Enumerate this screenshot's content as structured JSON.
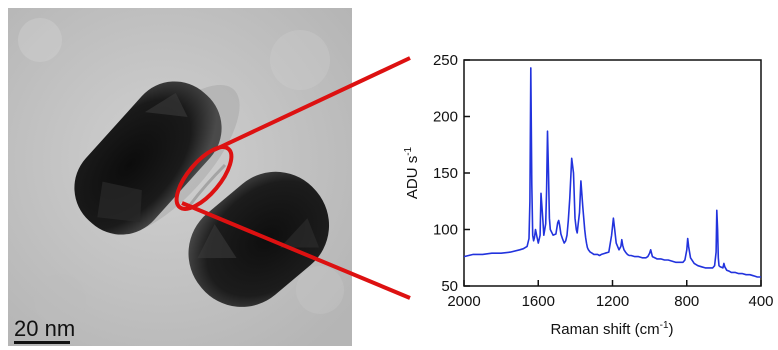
{
  "micrograph": {
    "scale_bar_label": "20 nm"
  },
  "colors": {
    "spectrum_line": "#2233dd",
    "callout": "#dd1111",
    "axis": "#111111",
    "micrograph_bg": "#c4c4c4",
    "particle_core": "#141414"
  },
  "chart_data": {
    "type": "line",
    "title": "",
    "xlabel_main": "Raman shift (cm",
    "xlabel_sup": "-1",
    "xlabel_end": ")",
    "ylabel_main": "ADU s",
    "ylabel_sup": "-1",
    "xlim": [
      2000,
      400
    ],
    "ylim": [
      50,
      250
    ],
    "x_ticks": [
      2000,
      1600,
      1200,
      800,
      400
    ],
    "y_ticks": [
      50,
      100,
      150,
      200,
      250
    ],
    "grid": false,
    "series": [
      {
        "x": [
          2000,
          1950,
          1900,
          1850,
          1800,
          1750,
          1700,
          1680,
          1660,
          1650,
          1645,
          1640,
          1635,
          1630,
          1625,
          1620,
          1615,
          1605,
          1600,
          1590,
          1585,
          1575,
          1570,
          1560,
          1555,
          1550,
          1545,
          1540,
          1535,
          1520,
          1505,
          1495,
          1490,
          1485,
          1478,
          1470,
          1460,
          1452,
          1445,
          1438,
          1430,
          1420,
          1410,
          1402,
          1395,
          1390,
          1385,
          1378,
          1370,
          1360,
          1350,
          1345,
          1340,
          1335,
          1330,
          1320,
          1310,
          1300,
          1290,
          1280,
          1270,
          1260,
          1240,
          1220,
          1205,
          1195,
          1188,
          1180,
          1165,
          1155,
          1150,
          1145,
          1138,
          1130,
          1125,
          1120,
          1110,
          1100,
          1080,
          1060,
          1040,
          1020,
          1010,
          1000,
          994,
          985,
          960,
          940,
          920,
          900,
          880,
          860,
          840,
          820,
          810,
          800,
          795,
          790,
          780,
          760,
          740,
          720,
          700,
          680,
          660,
          650,
          642,
          638,
          634,
          630,
          626,
          620,
          605,
          600,
          595,
          585,
          570,
          560,
          540,
          520,
          500,
          480,
          460,
          440,
          420,
          400
        ],
        "y": [
          76,
          78,
          78,
          79,
          79,
          80,
          82,
          83,
          85,
          92,
          125,
          243,
          140,
          95,
          90,
          93,
          100,
          92,
          88,
          95,
          132,
          108,
          95,
          105,
          135,
          187,
          150,
          110,
          100,
          95,
          96,
          106,
          108,
          104,
          96,
          92,
          88,
          90,
          95,
          108,
          128,
          163,
          150,
          110,
          100,
          97,
          105,
          115,
          143,
          120,
          100,
          93,
          88,
          84,
          82,
          80,
          79,
          78,
          78,
          78,
          77,
          78,
          79,
          80,
          95,
          110,
          100,
          88,
          82,
          85,
          91,
          86,
          82,
          80,
          79,
          78,
          77,
          77,
          76,
          76,
          75,
          75,
          76,
          79,
          82,
          76,
          74,
          74,
          73,
          73,
          72,
          71,
          71,
          71,
          73,
          82,
          92,
          85,
          75,
          70,
          68,
          67,
          66,
          66,
          66,
          68,
          80,
          117,
          100,
          75,
          68,
          67,
          66,
          70,
          67,
          64,
          63,
          62,
          62,
          61,
          61,
          60,
          60,
          59,
          58,
          58
        ]
      }
    ]
  }
}
